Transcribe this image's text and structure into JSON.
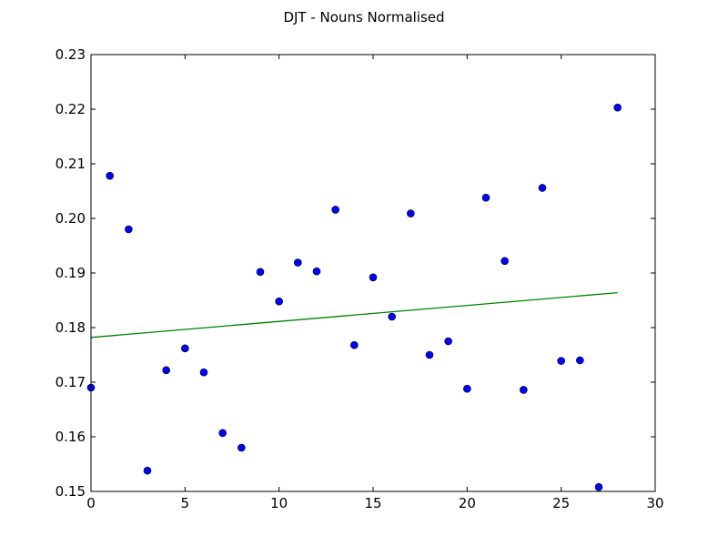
{
  "chart_data": {
    "type": "scatter",
    "title": "DJT - Nouns Normalised",
    "xlabel": "",
    "ylabel": "",
    "xlim": [
      0,
      30
    ],
    "ylim": [
      0.15,
      0.23
    ],
    "xticks": [
      0,
      5,
      10,
      15,
      20,
      25,
      30
    ],
    "xtick_labels": [
      "0",
      "5",
      "10",
      "15",
      "20",
      "25",
      "30"
    ],
    "yticks": [
      0.15,
      0.16,
      0.17,
      0.18,
      0.19,
      0.2,
      0.21,
      0.22,
      0.23
    ],
    "ytick_labels": [
      "0.15",
      "0.16",
      "0.17",
      "0.18",
      "0.19",
      "0.20",
      "0.21",
      "0.22",
      "0.23"
    ],
    "grid": false,
    "legend": "none",
    "series": [
      {
        "kind": "scatter",
        "color": "#0000ff",
        "x": [
          0,
          1,
          2,
          3,
          4,
          5,
          6,
          7,
          8,
          9,
          10,
          11,
          12,
          13,
          14,
          15,
          16,
          17,
          18,
          19,
          20,
          21,
          22,
          23,
          24,
          25,
          26,
          27,
          28
        ],
        "y": [
          0.169,
          0.2078,
          0.198,
          0.1538,
          0.1722,
          0.1762,
          0.1718,
          0.1607,
          0.158,
          0.1902,
          0.1848,
          0.1919,
          0.1903,
          0.2016,
          0.1768,
          0.1892,
          0.182,
          0.2009,
          0.175,
          0.1775,
          0.1688,
          0.2038,
          0.1922,
          0.1686,
          0.2056,
          0.1739,
          0.174,
          0.1508,
          0.2203
        ]
      },
      {
        "kind": "line",
        "color": "#008000",
        "x": [
          0,
          28
        ],
        "y": [
          0.1782,
          0.1864
        ]
      }
    ]
  }
}
